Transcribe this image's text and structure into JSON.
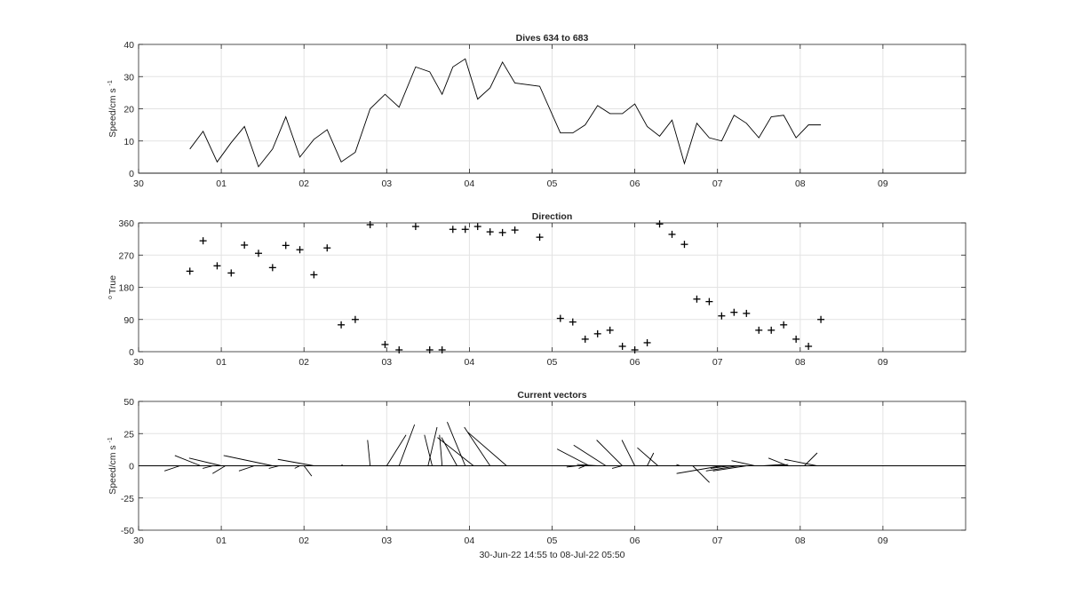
{
  "chart_data": [
    {
      "type": "line",
      "title": "Dives 634 to 683",
      "ylabel": "Speed/cm s",
      "ylabel_superscript": "-1",
      "xlim": [
        0,
        10
      ],
      "ylim": [
        0,
        40
      ],
      "xtick_labels": [
        "30",
        "01",
        "02",
        "03",
        "04",
        "05",
        "06",
        "07",
        "08",
        "09"
      ],
      "yticks": [
        0,
        10,
        20,
        30,
        40
      ],
      "grid": true,
      "series": [
        {
          "x": [
            0.62,
            0.78,
            0.95,
            1.12,
            1.28,
            1.45,
            1.62,
            1.78,
            1.95,
            2.12,
            2.28,
            2.45,
            2.62,
            2.8,
            2.98,
            3.15,
            3.35,
            3.52,
            3.67,
            3.8,
            3.95,
            4.1,
            4.25,
            4.4,
            4.55,
            4.85,
            5.1,
            5.25,
            5.4,
            5.55,
            5.7,
            5.85,
            6.0,
            6.15,
            6.3,
            6.45,
            6.6,
            6.75,
            6.9,
            7.05,
            7.2,
            7.35,
            7.5,
            7.65,
            7.8,
            7.95,
            8.1,
            8.25
          ],
          "y": [
            7.5,
            13,
            3.5,
            9.5,
            14.5,
            2,
            7.5,
            17.5,
            5,
            10.5,
            13.5,
            3.5,
            6.5,
            20,
            24.5,
            20.5,
            33,
            31.5,
            24.5,
            33,
            35.5,
            23,
            26.5,
            34.5,
            28,
            27,
            12.5,
            12.5,
            15,
            21,
            18.5,
            18.5,
            21.5,
            14.5,
            11.5,
            16.5,
            3,
            15.5,
            11,
            10,
            18,
            15.5,
            11,
            17.5,
            18,
            11,
            15,
            15
          ]
        }
      ]
    },
    {
      "type": "scatter",
      "title": "Direction",
      "ylabel": "True",
      "ylabel_superscript": "o",
      "xlim": [
        0,
        10
      ],
      "ylim": [
        0,
        360
      ],
      "xtick_labels": [
        "30",
        "01",
        "02",
        "03",
        "04",
        "05",
        "06",
        "07",
        "08",
        "09"
      ],
      "yticks": [
        0,
        90,
        180,
        270,
        360
      ],
      "grid": true,
      "series": [
        {
          "x": [
            0.62,
            0.78,
            0.95,
            1.12,
            1.28,
            1.45,
            1.62,
            1.78,
            1.95,
            2.12,
            2.28,
            2.45,
            2.62,
            2.8,
            2.98,
            3.15,
            3.35,
            3.52,
            3.67,
            3.8,
            3.95,
            4.1,
            4.25,
            4.4,
            4.55,
            4.85,
            5.1,
            5.25,
            5.4,
            5.55,
            5.7,
            5.85,
            6.0,
            6.15,
            6.3,
            6.45,
            6.6,
            6.75,
            6.9,
            7.05,
            7.2,
            7.35,
            7.5,
            7.65,
            7.8,
            7.95,
            8.1,
            8.25
          ],
          "y": [
            225,
            310,
            240,
            220,
            298,
            275,
            235,
            297,
            285,
            215,
            290,
            75,
            90,
            355,
            20,
            5,
            350,
            5,
            5,
            342,
            342,
            350,
            335,
            333,
            340,
            320,
            93,
            83,
            35,
            50,
            60,
            15,
            5,
            25,
            357,
            328,
            300,
            147,
            140,
            100,
            110,
            107,
            60,
            60,
            75,
            35,
            15,
            90
          ]
        }
      ]
    },
    {
      "type": "vector",
      "title": "Current vectors",
      "ylabel": "Speed/cm s",
      "ylabel_superscript": "-1",
      "xlabel": "30-Jun-22 14:55 to 08-Jul-22 05:50",
      "xlim": [
        0,
        10
      ],
      "ylim": [
        -50,
        50
      ],
      "xtick_labels": [
        "30",
        "01",
        "02",
        "03",
        "04",
        "05",
        "06",
        "07",
        "08",
        "09"
      ],
      "yticks": [
        50,
        25,
        0,
        -25,
        -50
      ],
      "ytick_labels": [
        "50",
        "25",
        "0",
        "-25",
        "-50"
      ],
      "grid": true,
      "vectors": {
        "x": [
          0.5,
          0.75,
          0.9,
          1.0,
          1.05,
          1.28,
          1.4,
          1.62,
          1.7,
          1.78,
          1.95,
          2.0,
          2.12,
          2.45,
          2.8,
          3.0,
          3.15,
          3.25,
          3.5,
          3.55,
          3.67,
          3.85,
          3.95,
          4.05,
          4.25,
          4.45,
          4.85,
          5.2,
          5.3,
          5.4,
          5.45,
          5.55,
          5.65,
          5.85,
          5.85,
          6.0,
          6.15,
          6.28,
          6.55,
          6.7,
          6.95,
          7.05,
          7.15,
          7.25,
          7.35,
          7.45,
          7.55,
          7.7,
          7.85,
          8.05,
          8.2,
          8.35
        ],
        "u": [
          -12,
          -20,
          -8,
          -25,
          -10,
          -28,
          -12,
          -38,
          -8,
          -6,
          -4,
          6,
          -28,
          1,
          -2,
          15,
          12,
          -3,
          7,
          -6,
          -2,
          -12,
          -14,
          -28,
          -20,
          -30,
          -30,
          -12,
          -8,
          -5,
          -25,
          -16,
          -25,
          -8,
          -20,
          -10,
          5,
          -16,
          -3,
          13,
          -14,
          -35,
          -15,
          -25,
          -26,
          -18,
          15,
          10,
          -15,
          10,
          -25,
          -25
        ],
        "v": [
          -4,
          8,
          -2,
          6,
          -6,
          0,
          -4,
          8,
          -2,
          0,
          -2,
          -8,
          5,
          1,
          20,
          24,
          32,
          0,
          30,
          24,
          24,
          22,
          34,
          22,
          30,
          26,
          0,
          0,
          -1,
          -2,
          13,
          1,
          16,
          -2,
          20,
          20,
          10,
          14,
          1,
          -13,
          0,
          -6,
          -2,
          -4,
          -4,
          4,
          1,
          1,
          6,
          10,
          5,
          0
        ]
      }
    }
  ]
}
